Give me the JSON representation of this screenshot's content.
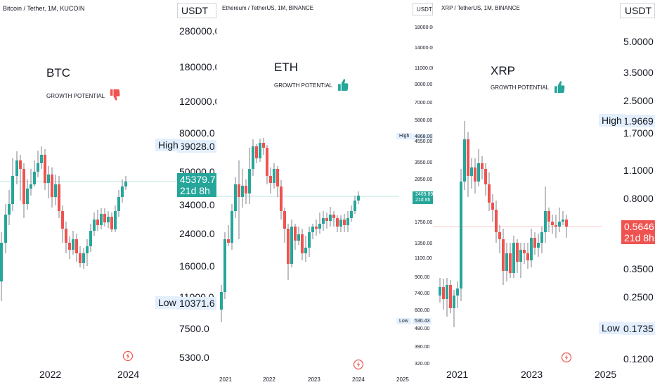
{
  "panels": [
    {
      "symbol": "Bitcoin / Tether, 1M, KUCOIN",
      "currency": "USDT",
      "coin": "BTC",
      "growth_label": "GROWTH POTENTIAL",
      "growth_icon": "thumbs-down-icon",
      "price_axis": [
        "280000.0",
        "180000.0",
        "120000.0",
        "80000.0",
        "69028.0",
        "50000.0",
        "45379.7",
        "34000.0",
        "24000.0",
        "16000.0",
        "11000.0",
        "10371.6",
        "7500.0",
        "5300.0"
      ],
      "high_label": "High",
      "high_value": "69028.0",
      "low_label": "Low",
      "low_value": "10371.6",
      "last_price": "45379.7",
      "countdown": "21d 8h",
      "time_axis": [
        "2022",
        "2024"
      ]
    },
    {
      "symbol": "Ethereum / TetherUS, 1M, BINANCE",
      "currency": "USDT",
      "coin": "ETH",
      "growth_label": "GROWTH POTENTIAL",
      "growth_icon": "thumbs-up-icon",
      "price_axis": [
        "18000.00",
        "14000.00",
        "11000.00",
        "9000.00",
        "7000.00",
        "5800.00",
        "4868.00",
        "4550.00",
        "3550.00",
        "2850.00",
        "2409.89",
        "1750.00",
        "1350.00",
        "1100.00",
        "900.00",
        "740.00",
        "600.00",
        "530.43",
        "480.00",
        "390.00",
        "320.00"
      ],
      "high_label": "High",
      "high_value": "4868.00",
      "low_label": "Low",
      "low_value": "530.43",
      "last_price": "2409.89",
      "countdown": "21d 8h",
      "time_axis": [
        "2021",
        "2022",
        "2023",
        "2024",
        "2025"
      ]
    },
    {
      "symbol": "XRP / TetherUS, 1M, BINANCE",
      "currency": "USDT",
      "coin": "XRP",
      "growth_label": "GROWTH POTENTIAL",
      "growth_icon": "thumbs-up-icon",
      "price_axis": [
        "5.0000",
        "3.5000",
        "2.5000",
        "1.9669",
        "1.7000",
        "1.1000",
        "0.8000",
        "0.5646",
        "0.3500",
        "0.2500",
        "0.1735",
        "0.1200"
      ],
      "high_label": "High",
      "high_value": "1.9669",
      "low_label": "Low",
      "low_value": "0.1735",
      "last_price": "0.5646",
      "countdown": "21d 8h",
      "time_axis": [
        "2021",
        "2023",
        "2025"
      ]
    }
  ],
  "colors": {
    "up": "#26a69a",
    "down": "#ef5350",
    "tag_bg": "#e3effd",
    "grid_line_up": "#26a69a",
    "grid_line_down": "#ef5350"
  }
}
